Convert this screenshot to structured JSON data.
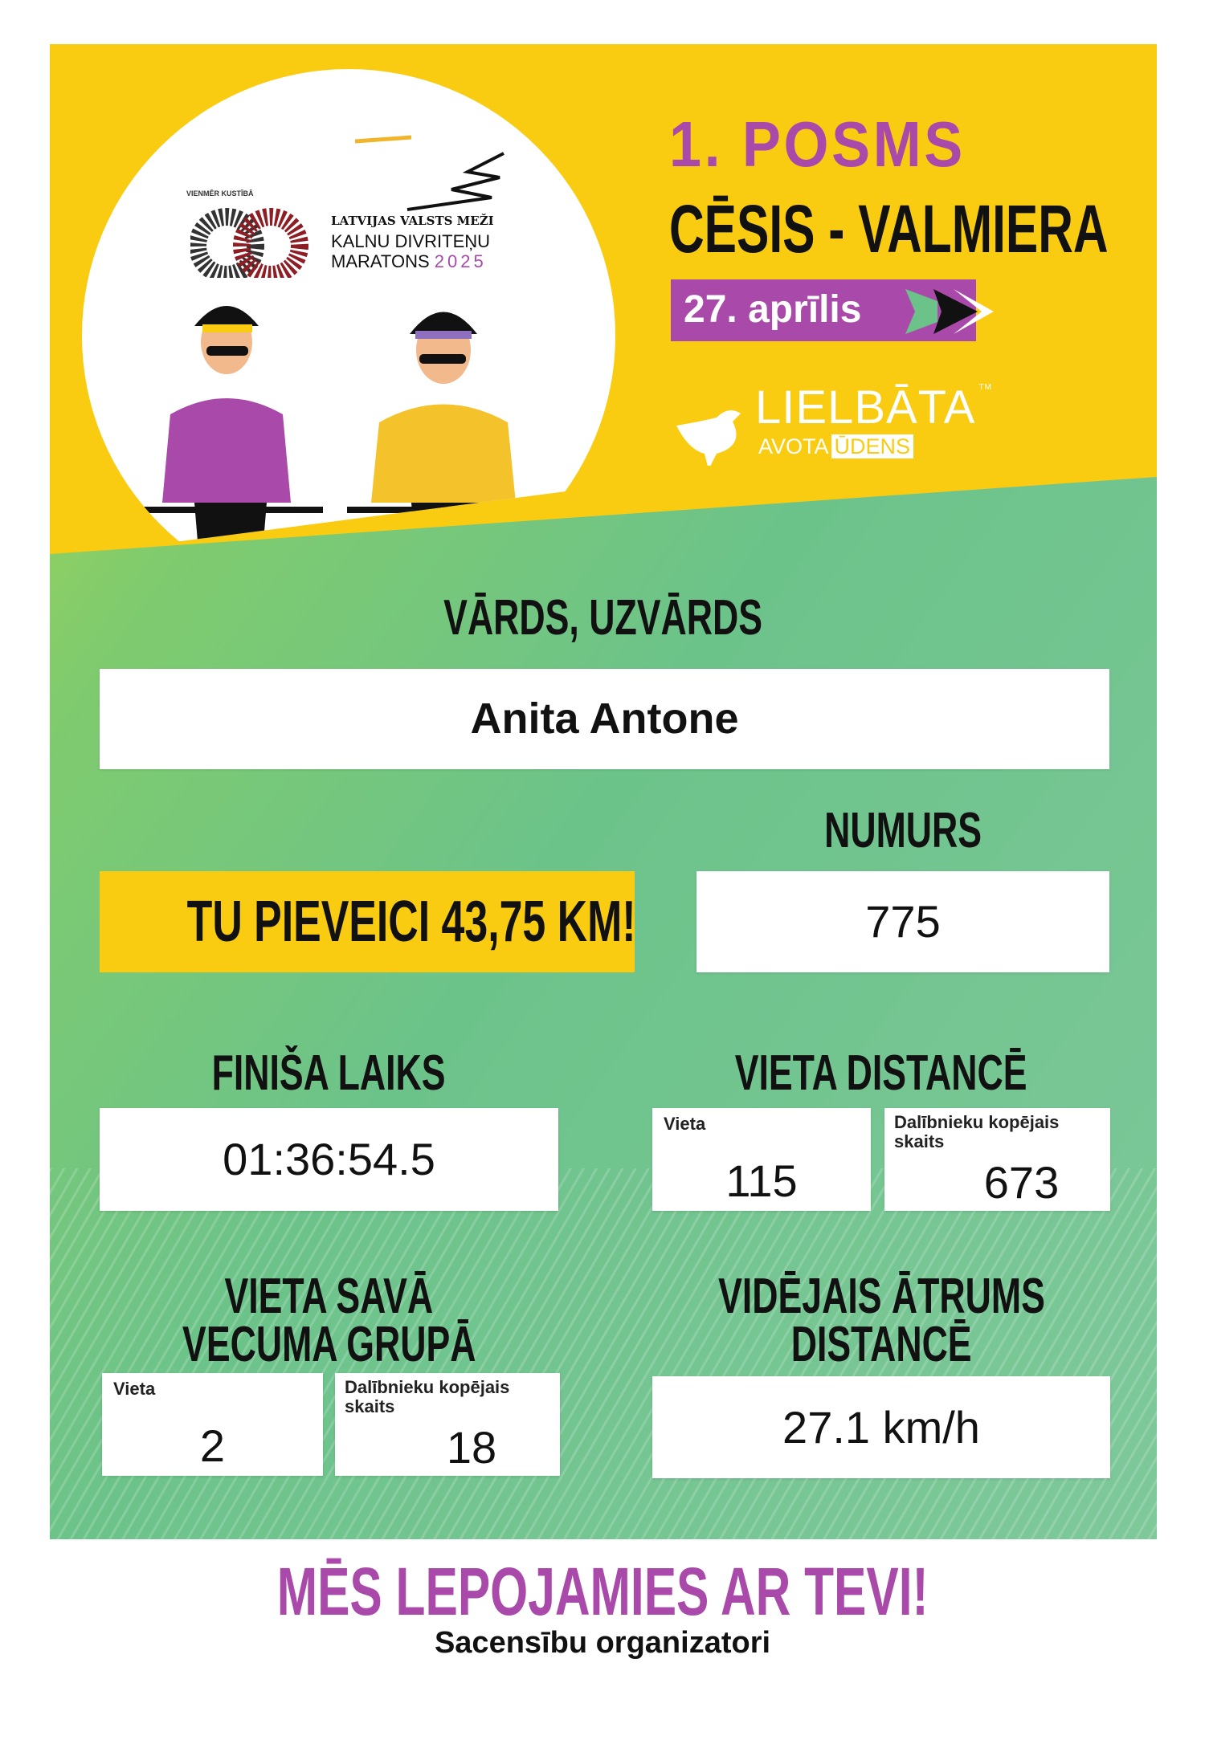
{
  "header": {
    "logo_small_text": "VIENMĒR KUSTĪBĀ",
    "sponsor_line": "LATVIJAS VALSTS MEŽI",
    "event_line1": "KALNU DIVRITEŅU",
    "event_line2": "MARATONS",
    "event_year": "2025",
    "stage": "1. POSMS",
    "route": "CĒSIS - VALMIERA",
    "date": "27. aprīlis",
    "partner_line1": "LIELBĀTA",
    "partner_tm": "TM",
    "partner_line2a": "AVOTA",
    "partner_line2b": "ŪDENS"
  },
  "name_section": {
    "label": "VĀRDS, UZVĀRDS",
    "value": "Anita Antone"
  },
  "distance_badge": "TU PIEVEICI 43,75 KM!",
  "number_section": {
    "label": "NUMURS",
    "value": "775"
  },
  "finish_time": {
    "label": "FINIŠA LAIKS",
    "value": "01:36:54.5"
  },
  "place_distance": {
    "label": "VIETA DISTANCĒ",
    "place_label": "Vieta",
    "place": "115",
    "total_label": "Dalībnieku kopējais skaits",
    "total": "673"
  },
  "place_age": {
    "label_line1": "VIETA SAVĀ",
    "label_line2": "VECUMA GRUPĀ",
    "place_label": "Vieta",
    "place": "2",
    "total_label": "Dalībnieku kopējais skaits",
    "total": "18"
  },
  "avg_speed": {
    "label_line1": "VIDĒJAIS ĀTRUMS",
    "label_line2": "DISTANCĒ",
    "value": "27.1 km/h"
  },
  "footer": {
    "title": "MĒS LEPOJAMIES AR TEVI!",
    "subtitle": "Sacensību organizatori"
  },
  "colors": {
    "yellow": "#f9cc12",
    "purple": "#a94aab",
    "green": "#6cc38a"
  }
}
